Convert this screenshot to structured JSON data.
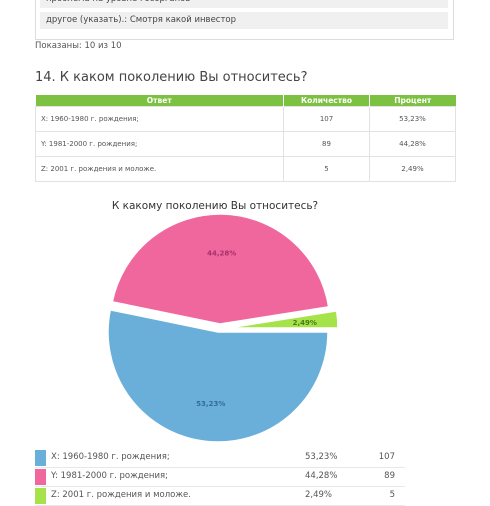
{
  "prev_question": {
    "options": [
      "проблема на уровне госорганов",
      "другое (указать).: Смотря какой инвестор"
    ],
    "shown_text": "Показаны: 10 из 10"
  },
  "question": {
    "title": "14. К каком поколению Вы относитесь?"
  },
  "table": {
    "headers": [
      "Ответ",
      "Количество",
      "Процент"
    ],
    "rows": [
      {
        "answer": "X: 1960-1980 г. рождения;",
        "count": "107",
        "percent": "53,23%"
      },
      {
        "answer": "Y: 1981-2000 г. рождения;",
        "count": "89",
        "percent": "44,28%"
      },
      {
        "answer": "Z: 2001 г. рождения и моложе.",
        "count": "5",
        "percent": "2,49%"
      }
    ]
  },
  "chart_data": {
    "type": "pie",
    "title": "К какому поколению Вы относитесь?",
    "categories": [
      "X: 1960-1980 г. рождения;",
      "Y: 1981-2000 г. рождения;",
      "Z: 2001 г. рождения и моложе."
    ],
    "values": [
      53.23,
      44.28,
      2.49
    ],
    "counts": [
      107,
      89,
      5
    ],
    "labels": [
      "53,23%",
      "44,28%",
      "2,49%"
    ],
    "colors": [
      "#6aafd9",
      "#f0679e",
      "#a6e34a"
    ]
  },
  "legend": [
    {
      "label": "X: 1960-1980 г. рождения;",
      "percent": "53,23%",
      "count": "107",
      "color": "#6aafd9"
    },
    {
      "label": "Y: 1981-2000 г. рождения;",
      "percent": "44,28%",
      "count": "89",
      "color": "#f0679e"
    },
    {
      "label": "Z: 2001 г. рождения и моложе.",
      "percent": "2,49%",
      "count": "5",
      "color": "#a6e34a"
    }
  ]
}
